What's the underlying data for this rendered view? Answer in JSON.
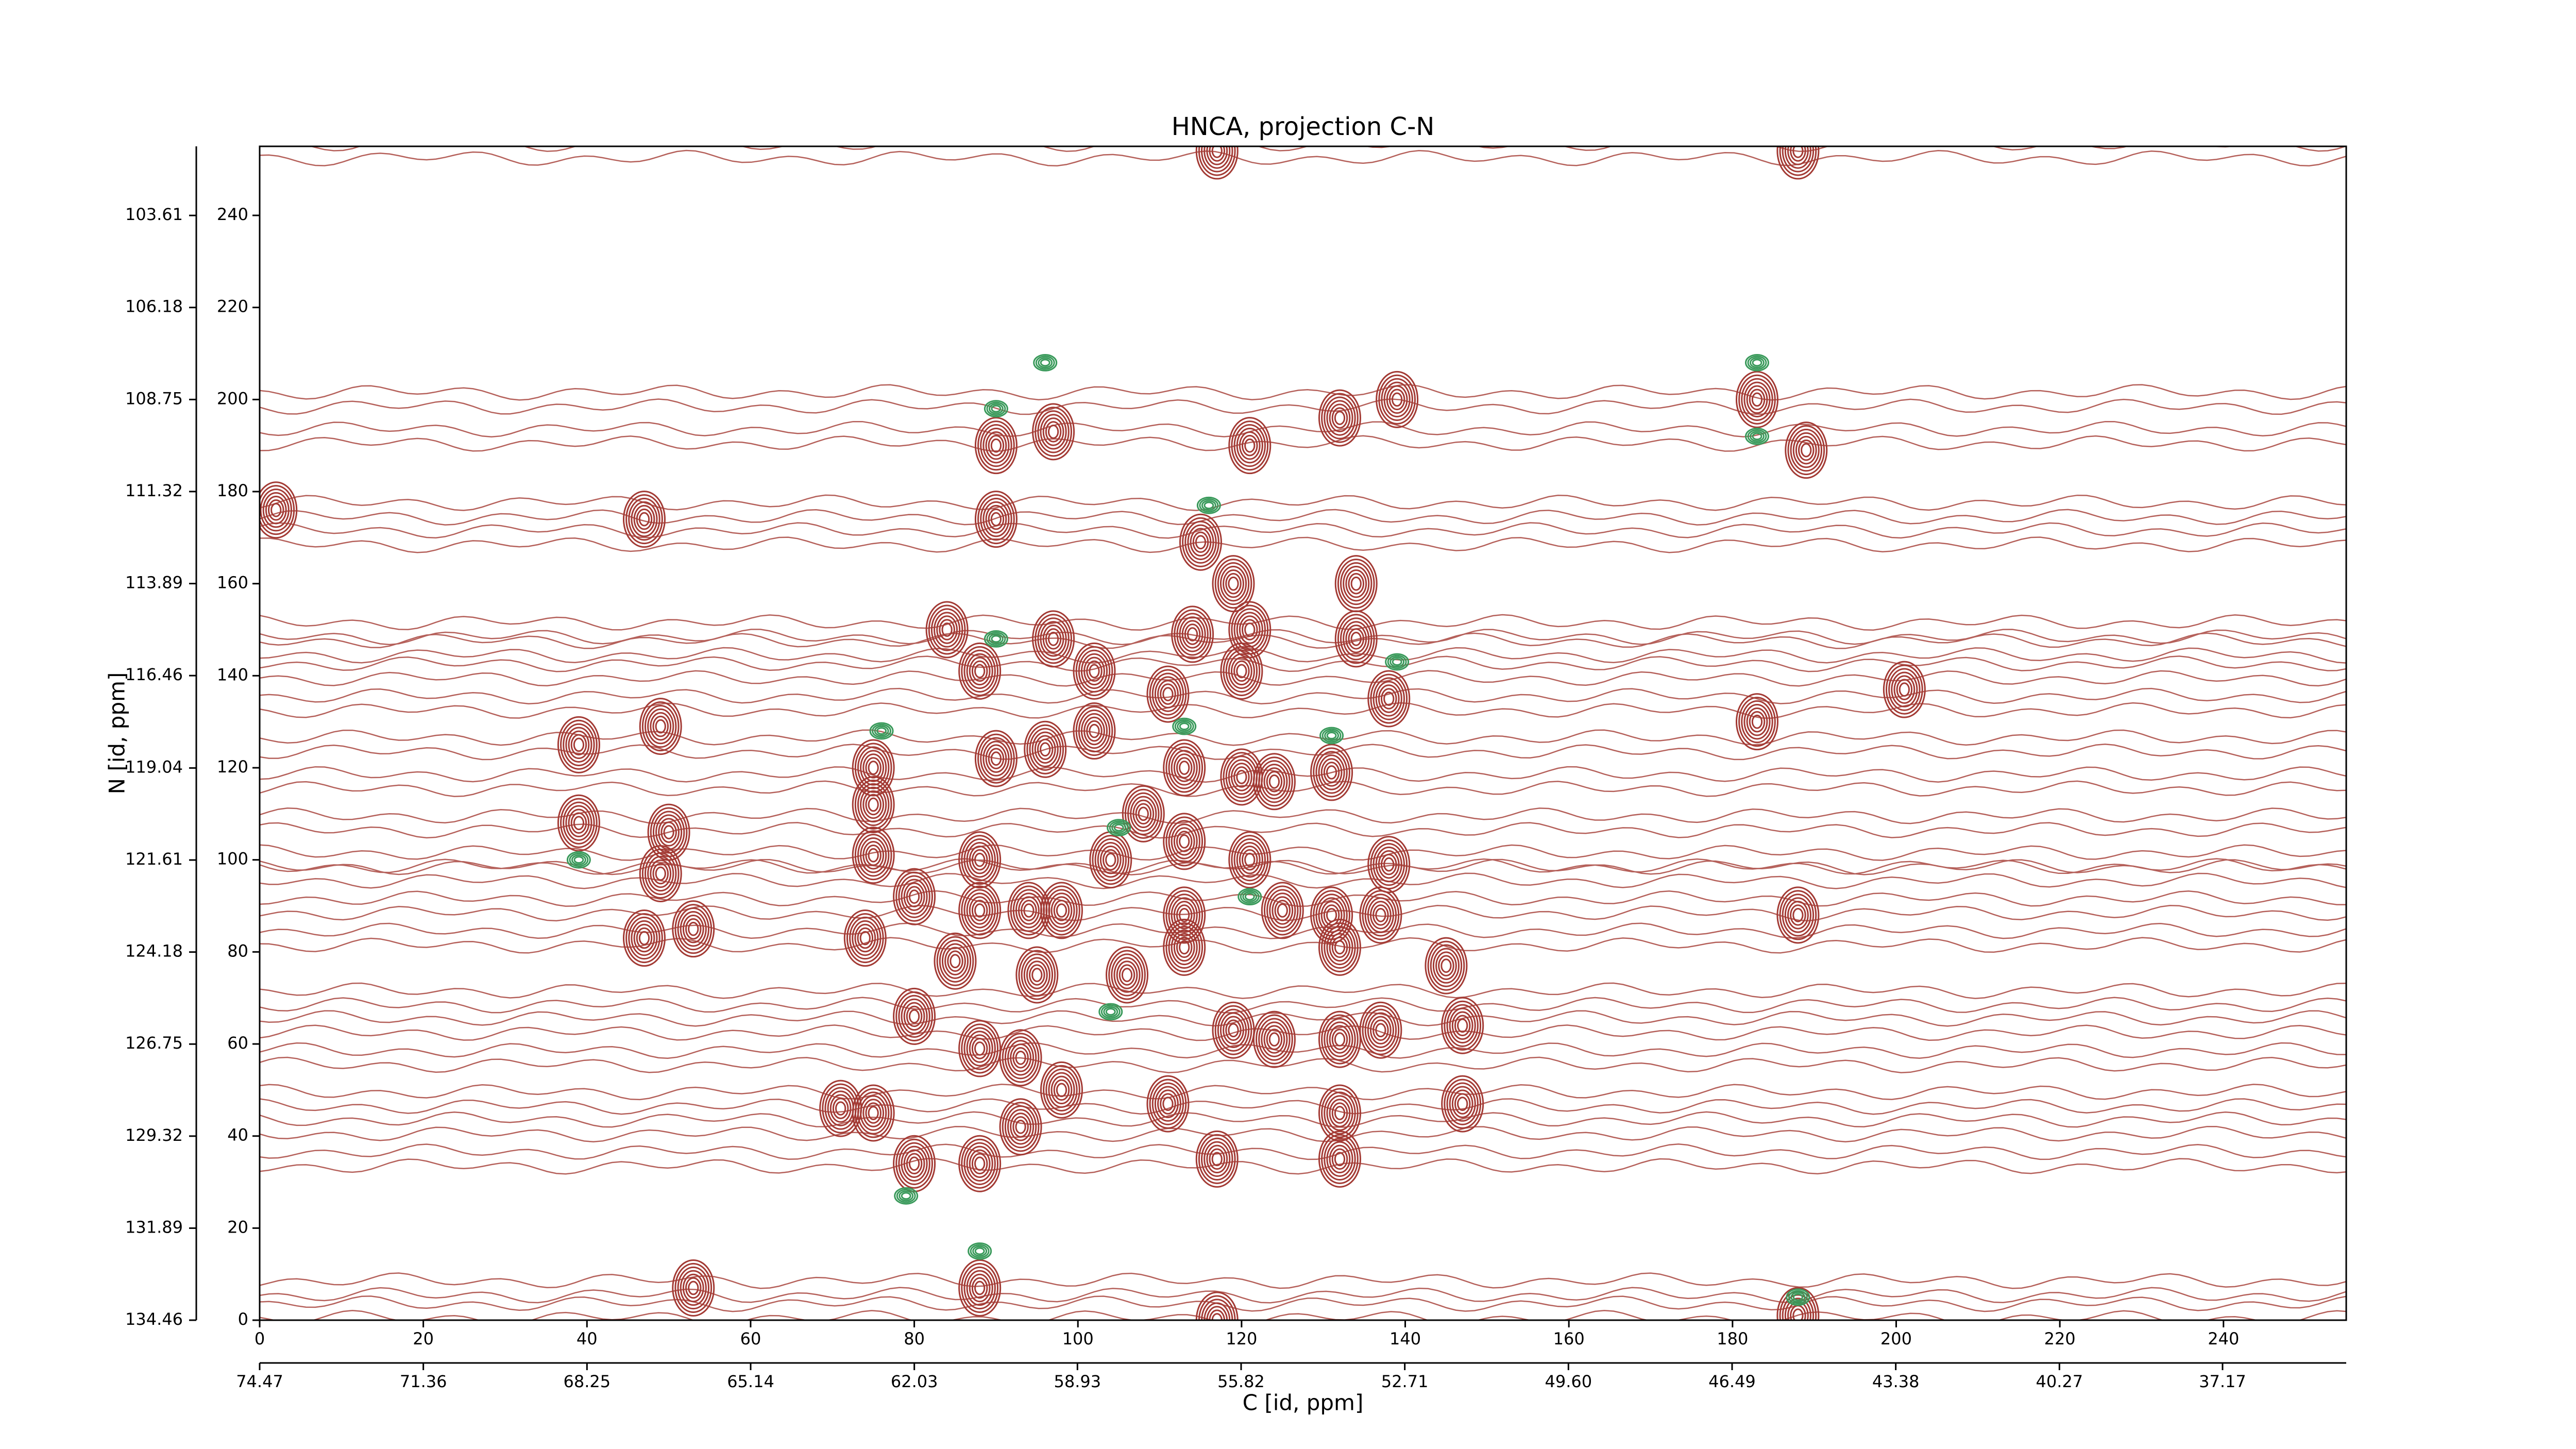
{
  "chart_data": {
    "type": "contour",
    "title": "HNCA, projection C-N",
    "xlabel": "C [id, ppm]",
    "ylabel": "N [id, ppm]",
    "xlim": [
      0,
      255
    ],
    "ylim": [
      0,
      255
    ],
    "xticks": [
      0,
      20,
      40,
      60,
      80,
      100,
      120,
      140,
      160,
      180,
      200,
      220,
      240
    ],
    "yticks": [
      0,
      20,
      40,
      60,
      80,
      100,
      120,
      140,
      160,
      180,
      200,
      220,
      240
    ],
    "x2lim": [
      74.47,
      34.82
    ],
    "x2ticks": [
      74.47,
      71.36,
      68.25,
      65.14,
      62.03,
      58.93,
      55.82,
      52.71,
      {
        "value": 49.6,
        "label": "49.60"
      },
      46.49,
      43.38,
      40.27,
      37.17
    ],
    "y2lim": [
      134.46,
      101.68
    ],
    "y2ticks": [
      134.46,
      131.89,
      129.32,
      126.75,
      124.18,
      121.61,
      119.04,
      116.46,
      113.89,
      111.32,
      108.75,
      106.18,
      103.61
    ],
    "series": [
      {
        "color": "#a33a34",
        "x": [
          117,
          188,
          183,
          139,
          132,
          121,
          90,
          97,
          189,
          2,
          47,
          90,
          115,
          119,
          134,
          121,
          114,
          134,
          97,
          84,
          88,
          102,
          120,
          111,
          138,
          49,
          183,
          39,
          201,
          96,
          102,
          90,
          75,
          113,
          120,
          124,
          131,
          75,
          39,
          50,
          108,
          88,
          75,
          104,
          113,
          121,
          138,
          49,
          80,
          88,
          94,
          98,
          113,
          131,
          137,
          188,
          125,
          47,
          53,
          74,
          85,
          95,
          106,
          113,
          132,
          145,
          80,
          88,
          93,
          124,
          132,
          137,
          147,
          119,
          71,
          75,
          98,
          111,
          132,
          147,
          93,
          80,
          88,
          117,
          132,
          53,
          88,
          117,
          188
        ],
        "y": [
          254,
          254,
          200,
          200,
          196,
          190,
          190,
          193,
          189,
          176,
          174,
          174,
          169,
          160,
          160,
          150,
          149,
          148,
          148,
          150,
          141,
          141,
          141,
          136,
          135,
          129,
          130,
          125,
          137,
          124,
          128,
          122,
          120,
          120,
          118,
          117,
          119,
          112,
          108,
          106,
          110,
          100,
          101,
          100,
          104,
          100,
          99,
          97,
          92,
          89,
          89,
          89,
          88,
          88,
          88,
          88,
          89,
          83,
          85,
          83,
          78,
          75,
          75,
          81,
          81,
          77,
          66,
          59,
          57,
          61,
          61,
          63,
          64,
          63,
          46,
          45,
          50,
          47,
          45,
          47,
          42,
          34,
          34,
          35,
          35,
          7,
          7,
          0,
          1
        ]
      },
      {
        "color": "#3a9a5b",
        "x": [
          96,
          90,
          183,
          183,
          116,
          90,
          139,
          76,
          113,
          39,
          105,
          131,
          79,
          88,
          188,
          121,
          104
        ],
        "y": [
          208,
          198,
          208,
          192,
          177,
          148,
          143,
          128,
          129,
          100,
          107,
          127,
          27,
          15,
          5,
          92,
          67
        ]
      }
    ],
    "bands": {
      "color": "#b5605a",
      "y": [
        254,
        200,
        192,
        176,
        170,
        150,
        146,
        141,
        134,
        125,
        117,
        108,
        100,
        97,
        90,
        83,
        70,
        64,
        57,
        48,
        42,
        35,
        7,
        2
      ]
    }
  }
}
